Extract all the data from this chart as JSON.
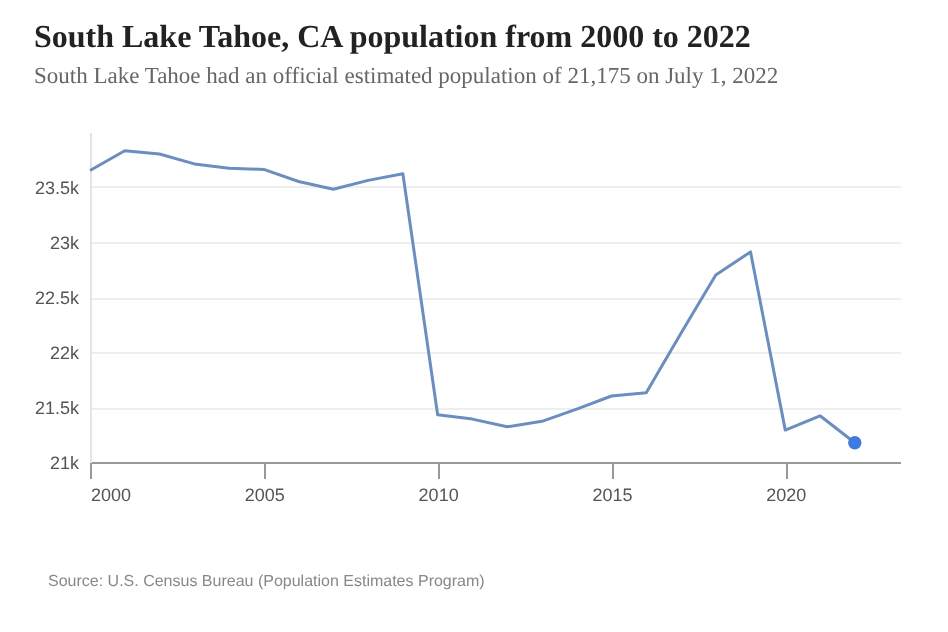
{
  "chart_data": {
    "type": "line",
    "title": "South Lake Tahoe, CA population from 2000 to 2022",
    "subtitle": "South Lake Tahoe had an official estimated population of 21,175 on July 1, 2022",
    "annotations": [
      "Source: U.S. Census Bureau (Population Estimates Program)"
    ],
    "x": [
      2000,
      2001,
      2002,
      2003,
      2004,
      2005,
      2006,
      2007,
      2008,
      2009,
      2010,
      2011,
      2012,
      2013,
      2014,
      2015,
      2016,
      2017,
      2018,
      2019,
      2020,
      2021,
      2022
    ],
    "series": [
      {
        "type": "line",
        "color": "#6b8ebf",
        "values": [
          23650,
          23830,
          23800,
          23710,
          23670,
          23660,
          23550,
          23480,
          23560,
          23620,
          21430,
          21390,
          21320,
          21370,
          21480,
          21600,
          21630,
          22170,
          22700,
          22910,
          21290,
          21420,
          21175
        ]
      },
      {
        "type": "scatter",
        "color": "#3f7ae0",
        "x": [
          2022
        ],
        "values": [
          21175
        ]
      }
    ],
    "xlim": [
      2000,
      2023.3
    ],
    "ylim": [
      21000,
      24000
    ],
    "xticks": [
      2000,
      2005,
      2010,
      2015,
      2020
    ],
    "yticks": [
      {
        "value": 21000,
        "label": "21k"
      },
      {
        "value": 21500,
        "label": "21.5k"
      },
      {
        "value": 22000,
        "label": "22k"
      },
      {
        "value": 22500,
        "label": "22.5k"
      },
      {
        "value": 23000,
        "label": "23k"
      },
      {
        "value": 23500,
        "label": "23.5k"
      }
    ],
    "grid": "y"
  }
}
